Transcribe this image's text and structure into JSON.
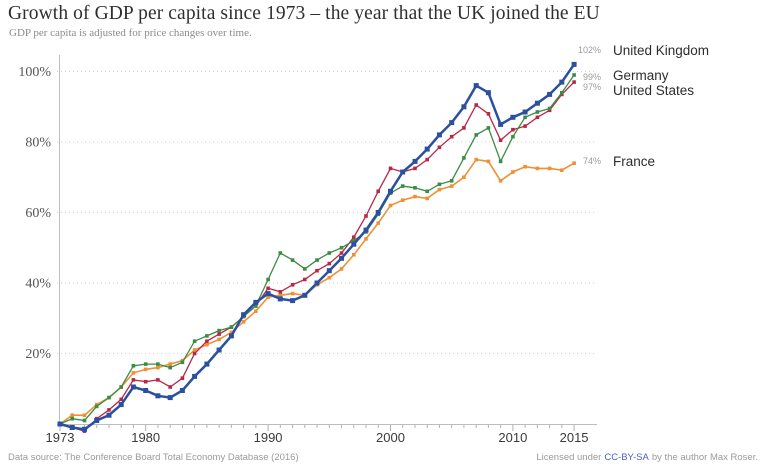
{
  "header": {
    "title": "Growth of GDP per capita since 1973 – the year that the UK joined the EU",
    "subtitle": "GDP per capita is adjusted for price changes over time."
  },
  "footer": {
    "datasource": "Data source: The Conference Board Total Economy Database (2016)",
    "license_prefix": "Licensed under",
    "license_link": "CC-BY-SA",
    "license_suffix": "by the author Max Roser."
  },
  "chart_data": {
    "type": "line",
    "title": "Growth of GDP per capita since 1973 – the year that the UK joined the EU",
    "subtitle": "GDP per capita is adjusted for price changes over time.",
    "xlabel": "",
    "ylabel": "",
    "x_start": 1973,
    "x_end": 2015,
    "x_labeled_ticks": [
      1973,
      1980,
      1990,
      2000,
      2010,
      2015
    ],
    "y_gridlines": [
      20,
      40,
      60,
      80,
      100
    ],
    "y_tick_labels": [
      "20%",
      "40%",
      "60%",
      "80%",
      "100%"
    ],
    "ylim": [
      -4,
      106
    ],
    "grid": true,
    "legend_position": "right-of-line-ends",
    "series": [
      {
        "name": "United Kingdom",
        "color": "#2b50a0",
        "end_label": "102%",
        "line_width": 2.5,
        "marker_size": 5,
        "values": [
          0,
          -1,
          -1.5,
          1,
          2.5,
          5.5,
          10.5,
          9.5,
          8,
          7.5,
          9.5,
          13.5,
          17,
          21,
          25,
          31,
          34.5,
          37,
          35.5,
          35,
          36.5,
          40,
          43.5,
          47,
          51,
          55,
          60,
          66,
          71.5,
          74.5,
          78,
          82,
          85.5,
          90,
          96,
          94,
          85,
          87,
          88.5,
          91,
          93.5,
          97,
          102
        ]
      },
      {
        "name": "Germany",
        "color": "#3b8c44",
        "end_label": "99%",
        "line_width": 1.3,
        "marker_size": 3.6,
        "values": [
          0,
          1.5,
          1,
          5,
          7.5,
          10.5,
          16.5,
          17,
          17,
          16,
          17.5,
          23.5,
          25,
          26.5,
          27.5,
          30.5,
          33.5,
          41,
          48.5,
          46.5,
          44,
          46.5,
          48.5,
          50,
          52,
          54.5,
          59.5,
          65.5,
          67.5,
          67,
          66,
          68,
          69,
          75.5,
          82,
          84,
          74.5,
          81.5,
          87,
          88.5,
          89.5,
          94,
          99
        ]
      },
      {
        "name": "United States",
        "color": "#b92746",
        "end_label": "97%",
        "line_width": 1.3,
        "marker_size": 3.6,
        "values": [
          0,
          -1,
          -2,
          1.5,
          4,
          7,
          12.5,
          12,
          12.5,
          10.5,
          13,
          20,
          23.5,
          25.5,
          27.5,
          30.5,
          33.5,
          38.5,
          37.5,
          39.5,
          41,
          43.5,
          45.5,
          48.5,
          53,
          59,
          66,
          72.5,
          71.5,
          72.5,
          75,
          78.5,
          81.5,
          84,
          90.5,
          88,
          80.5,
          83.5,
          84.5,
          87,
          89,
          93.5,
          97
        ]
      },
      {
        "name": "France",
        "color": "#ee9035",
        "end_label": "74%",
        "line_width": 1.6,
        "marker_size": 3.6,
        "values": [
          0,
          2.5,
          2.5,
          5.5,
          7.5,
          10.5,
          14.5,
          15.5,
          16,
          17,
          18,
          21,
          22.5,
          24,
          26,
          29,
          32,
          36,
          36.5,
          37,
          36.5,
          39.5,
          41.5,
          44,
          48,
          52.5,
          57,
          62,
          63.5,
          64.5,
          64,
          66.5,
          67.5,
          70,
          75,
          74.5,
          69,
          71.5,
          73,
          72.5,
          72.5,
          72,
          74
        ]
      }
    ],
    "series_label_layout": [
      {
        "name_y": 50,
        "pct_y": 50
      },
      {
        "name_y": 75,
        "pct_y": 77
      },
      {
        "name_y": 90,
        "pct_y": 87
      },
      {
        "name_y": 161,
        "pct_y": 161
      }
    ]
  }
}
